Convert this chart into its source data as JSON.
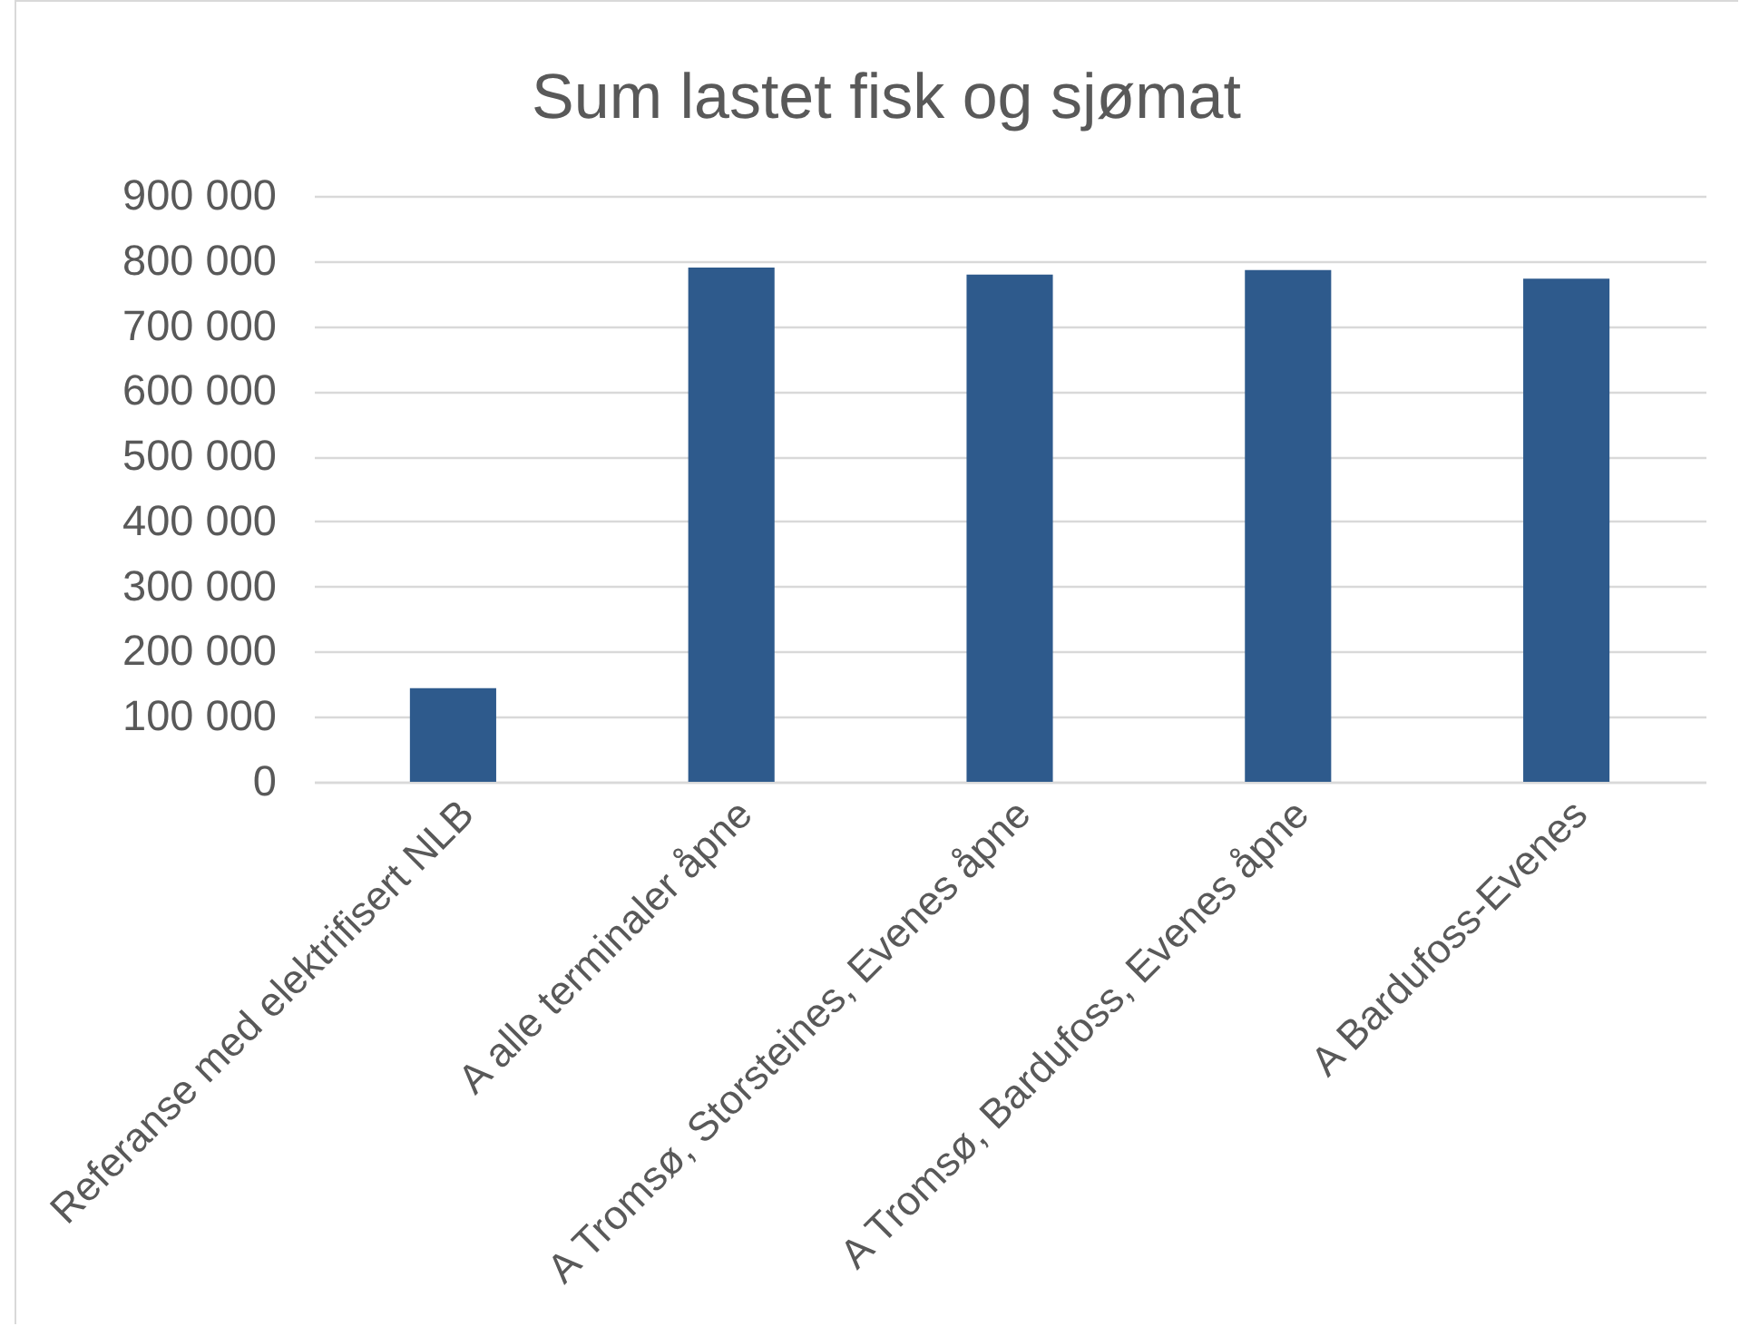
{
  "chart_data": {
    "type": "bar",
    "title": "Sum lastet fisk og sjømat",
    "categories": [
      "Referanse med elektrifisert NLB",
      "A alle terminaler åpne",
      "A Tromsø, Storsteines, Evenes åpne",
      "A Tromsø, Bardufoss, Evenes åpne",
      "A Bardufoss-Evenes"
    ],
    "values": [
      144000,
      790000,
      779000,
      786000,
      773000
    ],
    "color": "#2e5a8c",
    "ylim": [
      0,
      900000
    ],
    "yticks": [
      0,
      {
        "value": 100000,
        "label": "100 000"
      },
      {
        "value": 200000,
        "label": "200 000"
      },
      {
        "value": 300000,
        "label": "300 000"
      },
      {
        "value": 400000,
        "label": "400 000"
      },
      {
        "value": 500000,
        "label": "500 000"
      },
      {
        "value": 600000,
        "label": "600 000"
      },
      {
        "value": 700000,
        "label": "700 000"
      },
      {
        "value": 800000,
        "label": "800 000"
      },
      {
        "value": 900000,
        "label": "900 000"
      }
    ],
    "grid": "y"
  }
}
